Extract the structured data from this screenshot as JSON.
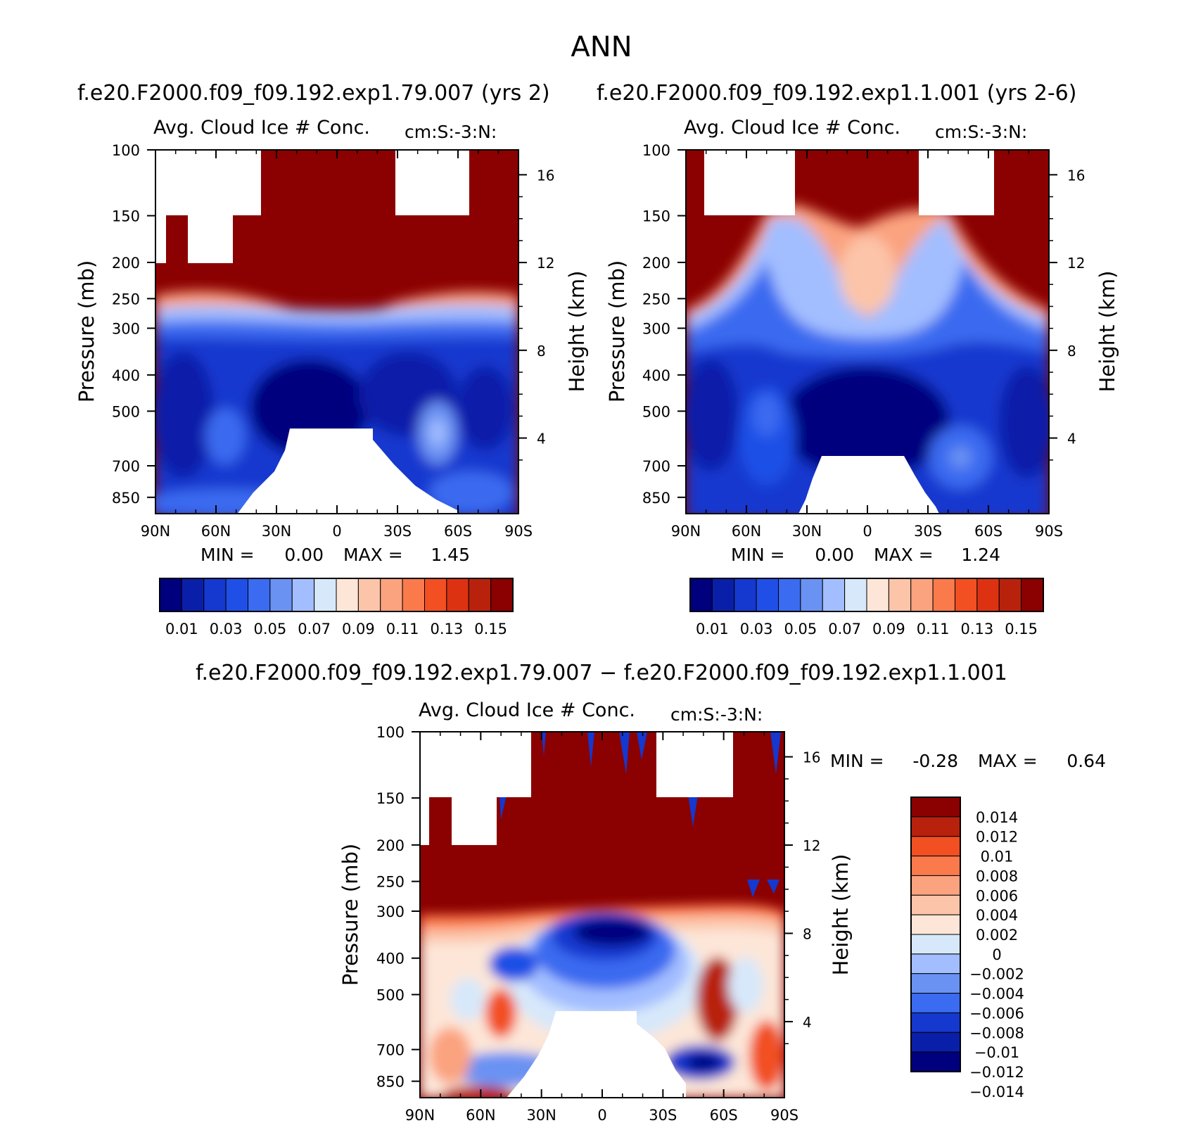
{
  "figure": {
    "season": "ANN",
    "diff_title": "f.e20.F2000.f09_f09.192.exp1.79.007 − f.e20.F2000.f09_f09.192.exp1.1.001"
  },
  "colors": {
    "abs": [
      "#00007f",
      "#0a1fa9",
      "#1538cf",
      "#1f4fe6",
      "#3a6bf0",
      "#6a92f3",
      "#a3beff",
      "#d7e8fa",
      "#fde6d8",
      "#fcc4a9",
      "#fba37f",
      "#fa7a4c",
      "#f24f22",
      "#dc3212",
      "#b8220d",
      "#8b0000"
    ],
    "diff": [
      "#00007f",
      "#0a1fa9",
      "#1538cf",
      "#3a6bf0",
      "#6a92f3",
      "#a3beff",
      "#d7e8fa",
      "#fde6d8",
      "#fcc4a9",
      "#fba37f",
      "#fa7a4c",
      "#f24f22",
      "#b8220d",
      "#8b0000"
    ]
  },
  "panels": {
    "a": {
      "case_title": "f.e20.F2000.f09_f09.192.exp1.79.007 (yrs 2)",
      "var_label": "Avg. Cloud Ice # Conc.",
      "units": "cm:S:-3:N:",
      "ylabel": "Pressure (mb)",
      "ylabel_right": "Height (km)",
      "stats": {
        "min_label": "MIN =",
        "min": "0.00",
        "max_label": "MAX =",
        "max": "1.45"
      }
    },
    "b": {
      "case_title": "f.e20.F2000.f09_f09.192.exp1.1.001 (yrs 2-6)",
      "var_label": "Avg. Cloud Ice # Conc.",
      "units": "cm:S:-3:N:",
      "ylabel": "Pressure (mb)",
      "ylabel_right": "Height (km)",
      "stats": {
        "min_label": "MIN =",
        "min": "0.00",
        "max_label": "MAX =",
        "max": "1.24"
      }
    },
    "c": {
      "var_label": "Avg. Cloud Ice # Conc.",
      "units": "cm:S:-3:N:",
      "ylabel": "Pressure (mb)",
      "ylabel_right": "Height (km)",
      "stats": {
        "min_label": "MIN =",
        "min": "-0.28",
        "max_label": "MAX =",
        "max": "0.64"
      }
    }
  },
  "chart_data": [
    {
      "type": "heatmap",
      "panel": "a",
      "x_ticks": [
        "90N",
        "60N",
        "30N",
        "0",
        "30S",
        "60S",
        "90S"
      ],
      "x_range": [
        90,
        -90
      ],
      "y_ticks": [
        100,
        150,
        200,
        250,
        300,
        400,
        500,
        700,
        850
      ],
      "y_range": [
        100,
        940
      ],
      "y_scale": "log",
      "y_right_ticks": [
        16,
        12,
        8,
        4
      ],
      "colorbar": [
        "0.01",
        "0.03",
        "0.05",
        "0.07",
        "0.09",
        "0.11",
        "0.13",
        "0.15"
      ],
      "min": 0.0,
      "max": 1.45
    },
    {
      "type": "heatmap",
      "panel": "b",
      "x_ticks": [
        "90N",
        "60N",
        "30N",
        "0",
        "30S",
        "60S",
        "90S"
      ],
      "x_range": [
        90,
        -90
      ],
      "y_ticks": [
        100,
        150,
        200,
        250,
        300,
        400,
        500,
        700,
        850
      ],
      "y_range": [
        100,
        940
      ],
      "y_scale": "log",
      "y_right_ticks": [
        16,
        12,
        8,
        4
      ],
      "colorbar": [
        "0.01",
        "0.03",
        "0.05",
        "0.07",
        "0.09",
        "0.11",
        "0.13",
        "0.15"
      ],
      "min": 0.0,
      "max": 1.24
    },
    {
      "type": "heatmap",
      "panel": "c",
      "x_ticks": [
        "90N",
        "60N",
        "30N",
        "0",
        "30S",
        "60S",
        "90S"
      ],
      "x_range": [
        90,
        -90
      ],
      "y_ticks": [
        100,
        150,
        200,
        250,
        300,
        400,
        500,
        700,
        850
      ],
      "y_range": [
        100,
        940
      ],
      "y_scale": "log",
      "y_right_ticks": [
        16,
        12,
        8,
        4
      ],
      "colorbar": [
        "0.014",
        "0.012",
        "0.01",
        "0.008",
        "0.006",
        "0.004",
        "0.002",
        "0",
        "−0.002",
        "−0.004",
        "−0.006",
        "−0.008",
        "−0.01",
        "−0.012",
        "−0.014"
      ],
      "min": -0.28,
      "max": 0.64
    }
  ]
}
